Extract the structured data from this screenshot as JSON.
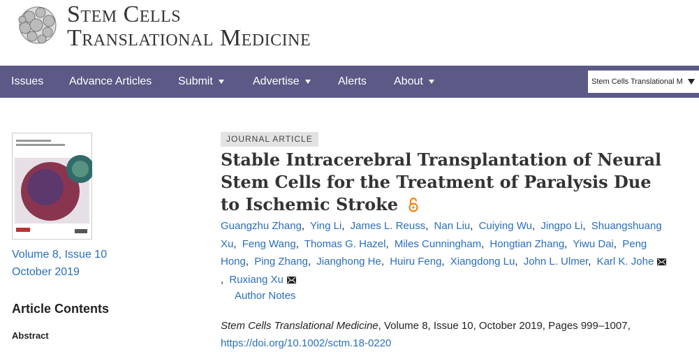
{
  "header": {
    "journal_line1": "Stem Cells",
    "journal_line2": "Translational Medicine"
  },
  "nav": {
    "items": [
      {
        "label": "Issues",
        "dropdown": false
      },
      {
        "label": "Advance Articles",
        "dropdown": false
      },
      {
        "label": "Submit",
        "dropdown": true
      },
      {
        "label": "Advertise",
        "dropdown": true
      },
      {
        "label": "Alerts",
        "dropdown": false
      },
      {
        "label": "About",
        "dropdown": true
      }
    ],
    "search_scope": "Stem Cells Translational M"
  },
  "sidebar": {
    "volume": "Volume 8, Issue 10",
    "date": "October 2019",
    "contents_heading": "Article Contents",
    "first_section": "Abstract"
  },
  "article": {
    "label": "JOURNAL ARTICLE",
    "title": "Stable Intracerebral Transplantation of Neural Stem Cells for the Treatment of Paralysis Due to Ischemic Stroke",
    "authors": [
      {
        "name": "Guangzhu Zhang",
        "email": false
      },
      {
        "name": "Ying Li",
        "email": false
      },
      {
        "name": "James L. Reuss",
        "email": false
      },
      {
        "name": "Nan Liu",
        "email": false
      },
      {
        "name": "Cuiying Wu",
        "email": false
      },
      {
        "name": "Jingpo Li",
        "email": false
      },
      {
        "name": "Shuangshuang Xu",
        "email": false
      },
      {
        "name": "Feng Wang",
        "email": false
      },
      {
        "name": "Thomas G. Hazel",
        "email": false
      },
      {
        "name": "Miles Cunningham",
        "email": false
      },
      {
        "name": "Hongtian Zhang",
        "email": false
      },
      {
        "name": "Yiwu Dai",
        "email": false
      },
      {
        "name": "Peng Hong",
        "email": false
      },
      {
        "name": "Ping Zhang",
        "email": false
      },
      {
        "name": "Jianghong He",
        "email": false
      },
      {
        "name": "Huiru Feng",
        "email": false
      },
      {
        "name": "Xiangdong Lu",
        "email": false
      },
      {
        "name": "John L. Ulmer",
        "email": false
      },
      {
        "name": "Karl K. Johe",
        "email": true
      },
      {
        "name": "Ruxiang Xu",
        "email": true
      }
    ],
    "author_notes": "Author Notes",
    "citation_journal": "Stem Cells Translational Medicine",
    "citation_details": ", Volume 8, Issue 10, October 2019, Pages 999–1007,",
    "doi": "https://doi.org/10.1002/sctm.18-0220"
  }
}
